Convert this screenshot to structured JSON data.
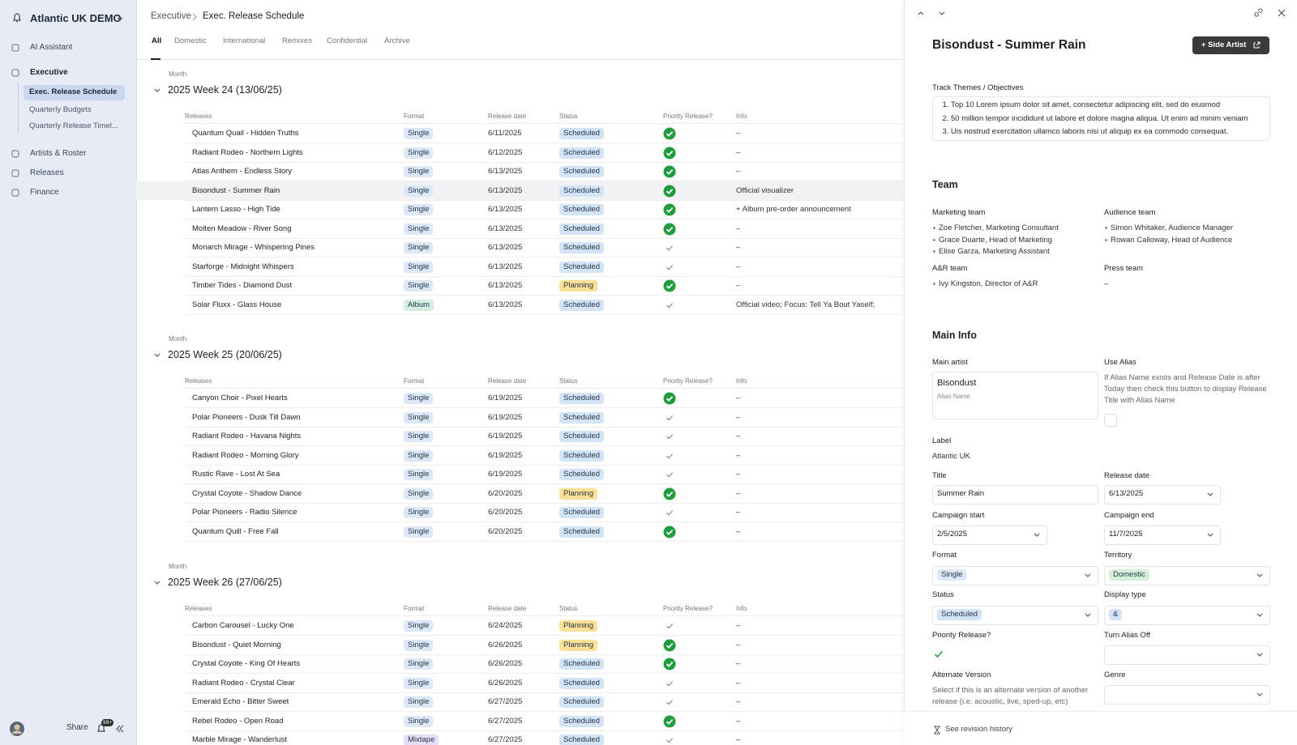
{
  "sidebar": {
    "workspace": "Atlantic UK DEMO",
    "nav": [
      "AI Assistant",
      "Executive",
      "Artists & Roster",
      "Releases",
      "Finance"
    ],
    "subnav": [
      "Exec. Release Schedule",
      "Quarterly Budgets",
      "Quarterly Release Timel..."
    ],
    "share": "Share",
    "notifications": "99+"
  },
  "header": {
    "breadcrumb": [
      "Executive",
      "Exec. Release Schedule"
    ],
    "tabs": [
      "All",
      "Domestic",
      "International",
      "Remixes",
      "Confidential",
      "Archive"
    ]
  },
  "table": {
    "group_by": "Month",
    "columns": [
      "Releases",
      "Format",
      "Release date",
      "Status",
      "Priority Release?",
      "Info"
    ],
    "badge_colors": {
      "Single": "#dce8f5",
      "Album": "#d3efdf",
      "Mixtape": "#e7ddf6",
      "Scheduled": "#d3e4f6",
      "Planning": "#fbe096",
      "Domestic": "#d4efda",
      "&": "#d3e4f6"
    },
    "groups": [
      {
        "title": "2025 Week 24 (13/06/25)",
        "rows": [
          {
            "release": "Quantum Quail - Hidden Truths",
            "format": "Single",
            "date": "6/11/2025",
            "status": "Scheduled",
            "priority": true,
            "info": "–"
          },
          {
            "release": "Radiant Rodeo - Northern Lights",
            "format": "Single",
            "date": "6/12/2025",
            "status": "Scheduled",
            "priority": true,
            "info": "–"
          },
          {
            "release": "Atlas Anthem - Endless Story",
            "format": "Single",
            "date": "6/13/2025",
            "status": "Scheduled",
            "priority": true,
            "info": "–"
          },
          {
            "release": "Bisondust - Summer Rain",
            "format": "Single",
            "date": "6/13/2025",
            "status": "Scheduled",
            "priority": true,
            "info": "Official visualizer"
          },
          {
            "release": "Lantern Lasso - High Tide",
            "format": "Single",
            "date": "6/13/2025",
            "status": "Scheduled",
            "priority": true,
            "info": "+ Album pre-order announcement"
          },
          {
            "release": "Molten Meadow - River Song",
            "format": "Single",
            "date": "6/13/2025",
            "status": "Scheduled",
            "priority": true,
            "info": "–"
          },
          {
            "release": "Monarch Mirage - Whispering Pines",
            "format": "Single",
            "date": "6/13/2025",
            "status": "Scheduled",
            "priority": false,
            "info": "–"
          },
          {
            "release": "Starforge - Midnight Whispers",
            "format": "Single",
            "date": "6/13/2025",
            "status": "Scheduled",
            "priority": false,
            "info": "–"
          },
          {
            "release": "Timber Tides - Diamond Dust",
            "format": "Single",
            "date": "6/13/2025",
            "status": "Planning",
            "priority": true,
            "info": "–"
          },
          {
            "release": "Solar Fluxx - Glass House",
            "format": "Album",
            "date": "6/13/2025",
            "status": "Scheduled",
            "priority": false,
            "info": "Official video; Focus: Tell Ya Bout Yaself;"
          }
        ]
      },
      {
        "title": "2025 Week 25 (20/06/25)",
        "rows": [
          {
            "release": "Canyon Choir - Pixel Hearts",
            "format": "Single",
            "date": "6/19/2025",
            "status": "Scheduled",
            "priority": true,
            "info": "–"
          },
          {
            "release": "Polar Pioneers - Dusk Till Dawn",
            "format": "Single",
            "date": "6/19/2025",
            "status": "Scheduled",
            "priority": false,
            "info": "–"
          },
          {
            "release": "Radiant Rodeo - Havana Nights",
            "format": "Single",
            "date": "6/19/2025",
            "status": "Scheduled",
            "priority": false,
            "info": "–"
          },
          {
            "release": "Radiant Rodeo - Morning Glory",
            "format": "Single",
            "date": "6/19/2025",
            "status": "Scheduled",
            "priority": false,
            "info": "–"
          },
          {
            "release": "Rustic Rave - Lost At Sea",
            "format": "Single",
            "date": "6/19/2025",
            "status": "Scheduled",
            "priority": false,
            "info": "–"
          },
          {
            "release": "Crystal Coyote - Shadow Dance",
            "format": "Single",
            "date": "6/20/2025",
            "status": "Planning",
            "priority": true,
            "info": "–"
          },
          {
            "release": "Polar Pioneers - Radio Silence",
            "format": "Single",
            "date": "6/20/2025",
            "status": "Scheduled",
            "priority": false,
            "info": "–"
          },
          {
            "release": "Quantum Quill - Free Fall",
            "format": "Single",
            "date": "6/20/2025",
            "status": "Scheduled",
            "priority": true,
            "info": "–"
          }
        ]
      },
      {
        "title": "2025 Week 26 (27/06/25)",
        "rows": [
          {
            "release": "Carbon Carousel - Lucky One",
            "format": "Single",
            "date": "6/24/2025",
            "status": "Planning",
            "priority": false,
            "info": "–"
          },
          {
            "release": "Bisondust - Quiet Morning",
            "format": "Single",
            "date": "6/26/2025",
            "status": "Planning",
            "priority": true,
            "info": "–"
          },
          {
            "release": "Crystal Coyote - King Of Hearts",
            "format": "Single",
            "date": "6/26/2025",
            "status": "Scheduled",
            "priority": true,
            "info": "–"
          },
          {
            "release": "Radiant Rodeo - Crystal Clear",
            "format": "Single",
            "date": "6/26/2025",
            "status": "Scheduled",
            "priority": false,
            "info": "–"
          },
          {
            "release": "Emerald Echo - Bitter Sweet",
            "format": "Single",
            "date": "6/27/2025",
            "status": "Scheduled",
            "priority": false,
            "info": "–"
          },
          {
            "release": "Rebel Rodeo - Open Road",
            "format": "Single",
            "date": "6/27/2025",
            "status": "Scheduled",
            "priority": true,
            "info": "–"
          },
          {
            "release": "Marble Mirage - Wanderlust",
            "format": "Mixtape",
            "date": "6/27/2025",
            "status": "Scheduled",
            "priority": false,
            "info": "–"
          }
        ]
      }
    ]
  },
  "panel": {
    "title": "Bisondust - Summer Rain",
    "button": "+ Side Artist",
    "themes_label": "Track Themes / Objectives",
    "themes": [
      "Top 10 Lorem ipsum dolor sit amet, consectetur adipiscing elit, sed do eiusmod",
      "50 million tempor incididunt ut labore et dolore magna aliqua. Ut enim ad minim veniam",
      "Uis nostrud exercitation ullamco laboris nisi ut aliquip ex ea commodo consequat."
    ],
    "team_heading": "Team",
    "teams": [
      {
        "name": "Marketing team",
        "members": [
          "Zoe Fletcher, Marketing Consultant",
          "Grace Duarte, Head of Marketing",
          "Elise Garza, Marketing Assistant"
        ]
      },
      {
        "name": "Audience team",
        "members": [
          "Simon Whitaker, Audience Manager",
          "Rowan Calloway, Head of Audience"
        ]
      },
      {
        "name": "A&R team",
        "members": [
          "Ivy Kingston, Director of A&R"
        ]
      },
      {
        "name": "Press team",
        "members": [
          "–"
        ]
      }
    ],
    "main_info_heading": "Main Info",
    "fields": {
      "main_artist": {
        "label": "Main artist",
        "value": "Bisondust",
        "placeholder": "Alias Name"
      },
      "use_alias": {
        "label": "Use Alias",
        "description": "If Alias Name exists and Release Date is after Today then check this button to display Release Title with Alias Name"
      },
      "label": {
        "label": "Label",
        "value": "Atlantic UK"
      },
      "title": {
        "label": "Title",
        "value": "Summer Rain"
      },
      "release_date": {
        "label": "Release date",
        "value": "6/13/2025"
      },
      "campaign_start": {
        "label": "Campaign start",
        "value": "2/5/2025"
      },
      "campaign_end": {
        "label": "Campaign end",
        "value": "11/7/2025"
      },
      "format": {
        "label": "Format",
        "value": "Single"
      },
      "territory": {
        "label": "Territory",
        "value": "Domestic"
      },
      "status": {
        "label": "Status",
        "value": "Scheduled"
      },
      "display_type": {
        "label": "Display type",
        "value": "&"
      },
      "priority": {
        "label": "Priority Release?",
        "checked": true
      },
      "turn_alias_off": {
        "label": "Turn Alias Off"
      },
      "alternate_version": {
        "label": "Alternate Version",
        "description": "Select if this is an alternate version of another release (i.e. acoustic, live, sped-up, etc)"
      },
      "genre": {
        "label": "Genre"
      }
    },
    "revision_history": "See revision history"
  }
}
